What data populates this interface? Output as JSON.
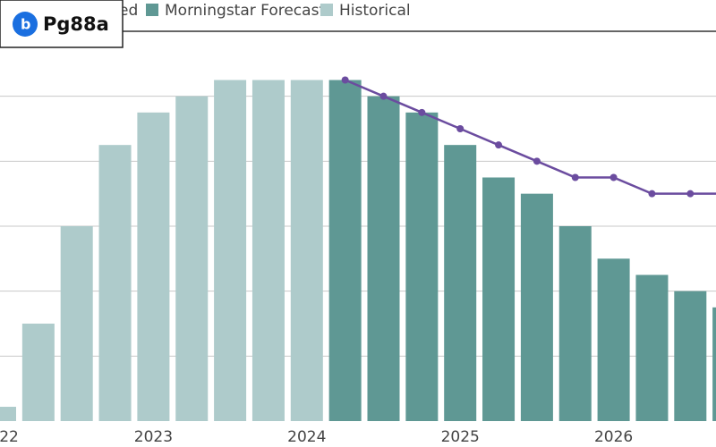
{
  "chart_data": {
    "type": "bar",
    "watermark": "Pg88a",
    "categories": [
      "22",
      null,
      null,
      null,
      "2023",
      null,
      null,
      null,
      "2024",
      null,
      null,
      null,
      "2025",
      null,
      null,
      null,
      "2026",
      null,
      null,
      null
    ],
    "series": [
      {
        "name": "ed",
        "type": "line",
        "color": "#6b4c9f",
        "values": [
          null,
          null,
          null,
          null,
          null,
          null,
          null,
          null,
          null,
          5.25,
          5.0,
          4.75,
          4.5,
          4.25,
          4.0,
          3.75,
          3.75,
          3.5,
          3.5,
          3.5
        ]
      },
      {
        "name": "Morningstar Forecast",
        "type": "bar",
        "color": "#5f9894",
        "values": [
          null,
          null,
          null,
          null,
          null,
          null,
          null,
          null,
          null,
          5.25,
          5.0,
          4.75,
          4.25,
          3.75,
          3.5,
          3.0,
          2.5,
          2.25,
          2.0,
          1.75
        ]
      },
      {
        "name": "Historical",
        "type": "bar",
        "color": "#aecbcb",
        "values": [
          0.22,
          1.5,
          3.0,
          4.25,
          4.75,
          5.0,
          5.25,
          5.25,
          5.25,
          null,
          null,
          null,
          null,
          null,
          null,
          null,
          null,
          null,
          null,
          null
        ]
      }
    ],
    "ylim": [
      0,
      6
    ],
    "yticks": [
      1,
      2,
      3,
      4,
      5
    ],
    "grid": true
  }
}
